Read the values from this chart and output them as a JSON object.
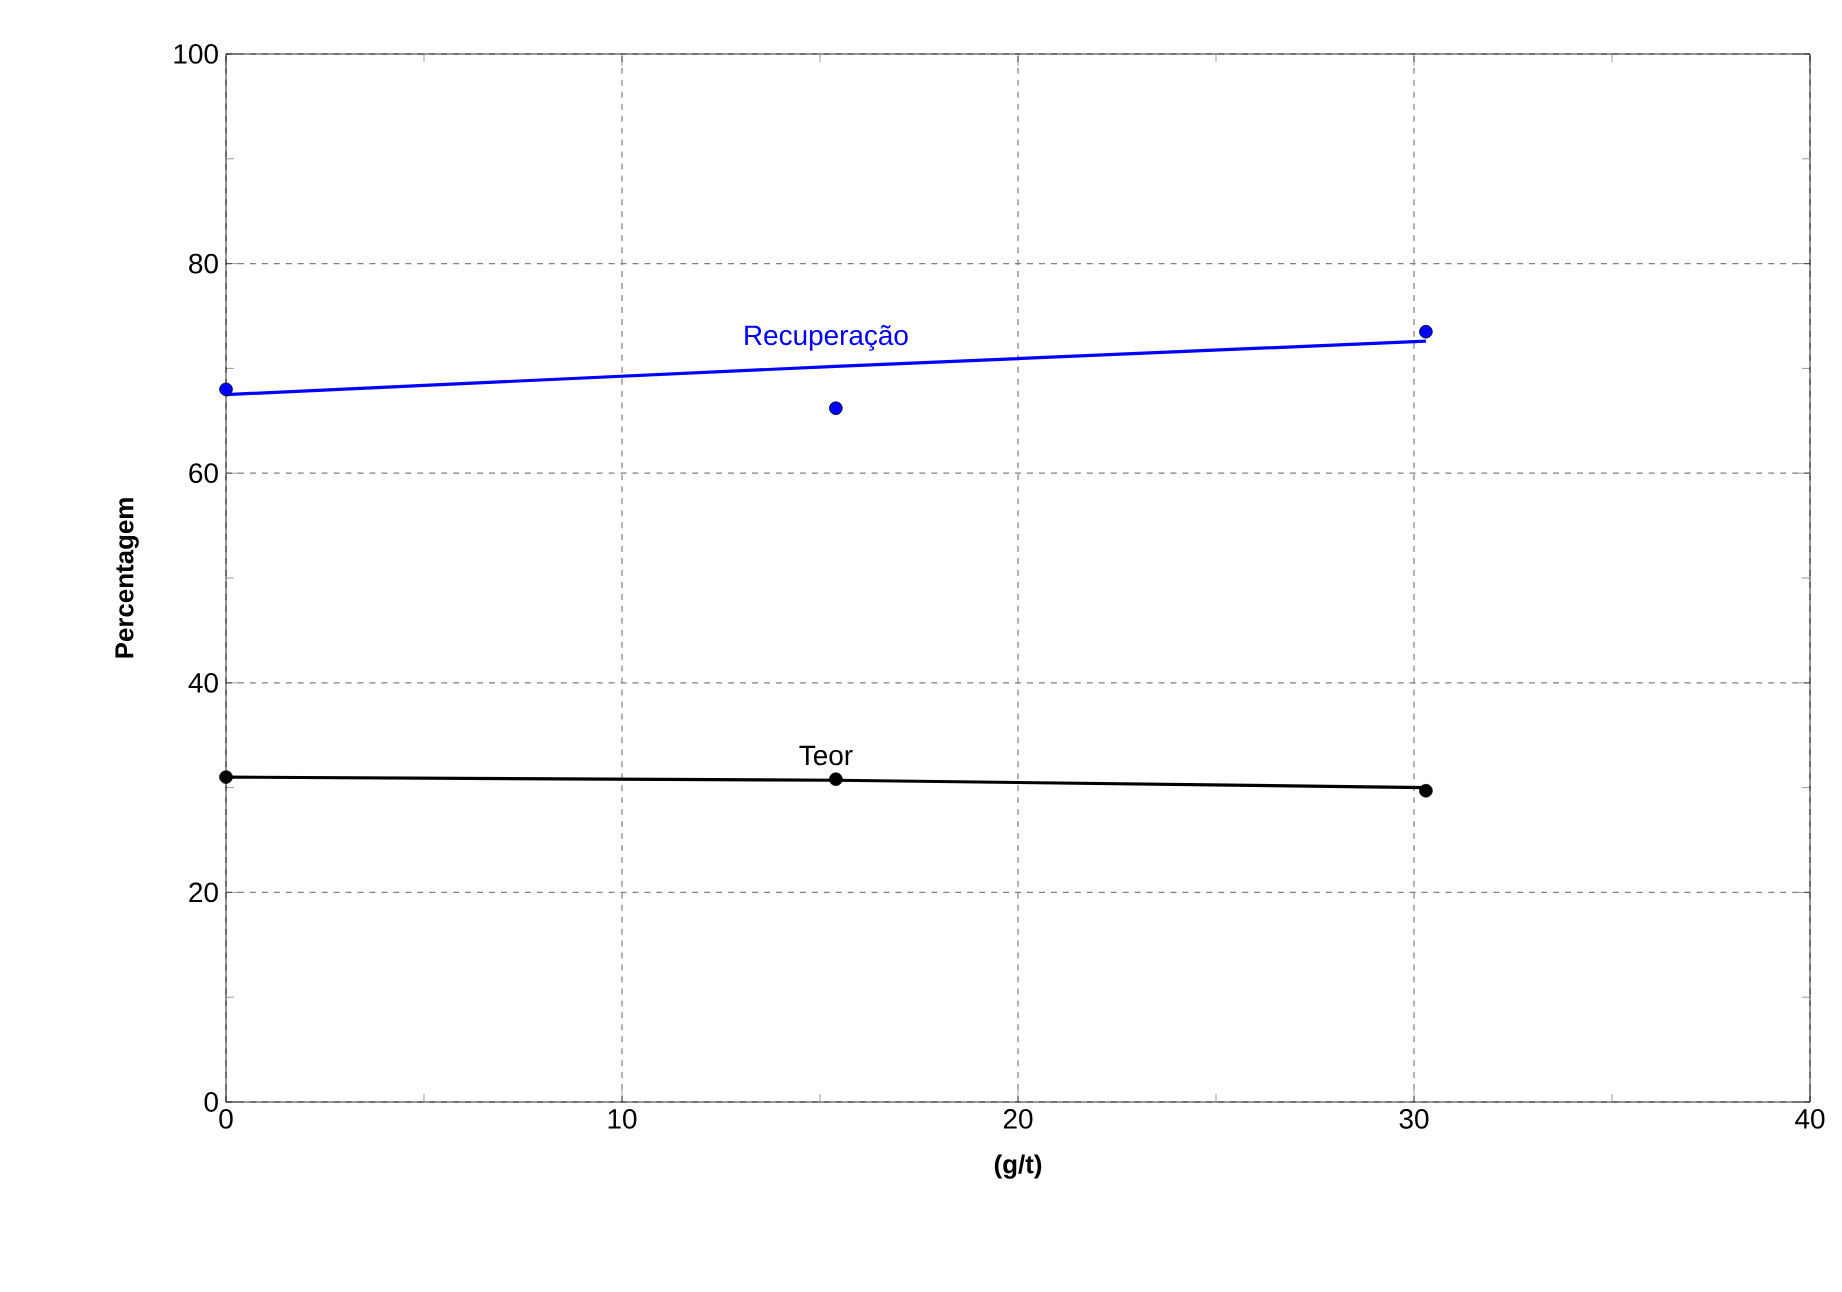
{
  "chart_data": {
    "type": "scatter",
    "xlabel": "(g/t)",
    "ylabel": "Percentagem",
    "series": [
      {
        "color": "#0000ff",
        "x": [
          0,
          15.4,
          30.3
        ],
        "values": [
          68,
          66.2,
          73.5
        ]
      },
      {
        "type": "line",
        "name": "Recuperação",
        "color": "#0000ff",
        "marker": "none",
        "x": [
          0,
          15.4,
          30.3
        ],
        "values": [
          67.5,
          70.2,
          72.6
        ]
      },
      {
        "color": "#000000",
        "x": [
          0,
          15.4,
          30.3
        ],
        "values": [
          31,
          30.8,
          29.7
        ]
      },
      {
        "type": "line",
        "name": "Teor",
        "color": "#000000",
        "marker": "none",
        "x": [
          0,
          15.4,
          30.3
        ],
        "values": [
          31,
          30.7,
          30
        ]
      }
    ],
    "xlim": [
      0,
      40
    ],
    "xticks": [
      0,
      10,
      20,
      30,
      40
    ],
    "ylim": [
      0,
      100
    ],
    "yticks": [
      0,
      20,
      40,
      60,
      80,
      100
    ],
    "grid": true,
    "marker": "circle",
    "line_style": "solid"
  }
}
